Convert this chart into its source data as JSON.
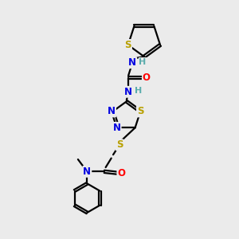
{
  "bg_color": "#ebebeb",
  "line_color": "#000000",
  "bond_width": 1.6,
  "atom_colors": {
    "S": "#b8a000",
    "N": "#0000e0",
    "O": "#ff0000",
    "H": "#5aacac",
    "C": "#000000"
  },
  "font_size": 8.5
}
